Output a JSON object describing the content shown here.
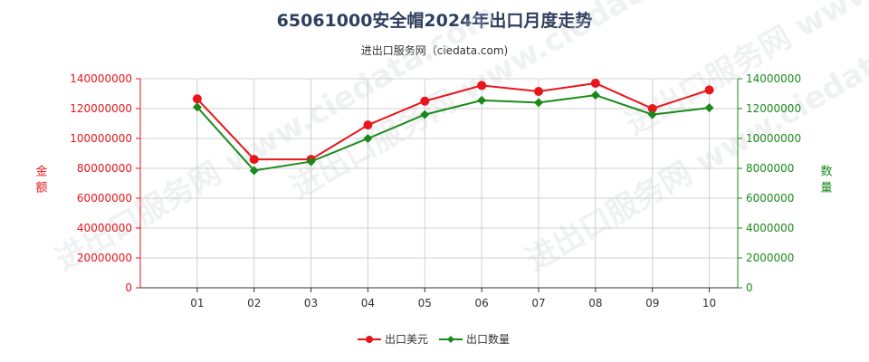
{
  "title": "65061000安全帽2024年出口月度走势",
  "subtitle": "进出口服务网（ciedata.com)",
  "watermark": "进出口服务网 www.ciedata.com",
  "chart_data": {
    "type": "line",
    "categories": [
      "01",
      "02",
      "03",
      "04",
      "05",
      "06",
      "07",
      "08",
      "09",
      "10"
    ],
    "series": [
      {
        "name": "出口美元",
        "axis": "left",
        "color": "#e8151b",
        "marker": "circle",
        "values": [
          126500000,
          86000000,
          86000000,
          109000000,
          125000000,
          135500000,
          131500000,
          137000000,
          120000000,
          132500000
        ]
      },
      {
        "name": "出口数量",
        "axis": "right",
        "color": "#1a8a1a",
        "marker": "diamond",
        "values": [
          12100000,
          7850000,
          8450000,
          10000000,
          11600000,
          12550000,
          12400000,
          12900000,
          11600000,
          12050000
        ]
      }
    ],
    "y_left": {
      "label": "金额",
      "color": "#e8151b",
      "ylim": [
        0,
        140000000
      ],
      "ticks": [
        "0",
        "20000000",
        "40000000",
        "60000000",
        "80000000",
        "100000000",
        "120000000",
        "140000000"
      ]
    },
    "y_right": {
      "label": "数量",
      "color": "#1a8a1a",
      "ylim": [
        0,
        14000000
      ],
      "ticks": [
        "0",
        "2000000",
        "4000000",
        "6000000",
        "8000000",
        "10000000",
        "12000000",
        "14000000"
      ]
    },
    "grid": true,
    "legend": "bottom-center"
  }
}
